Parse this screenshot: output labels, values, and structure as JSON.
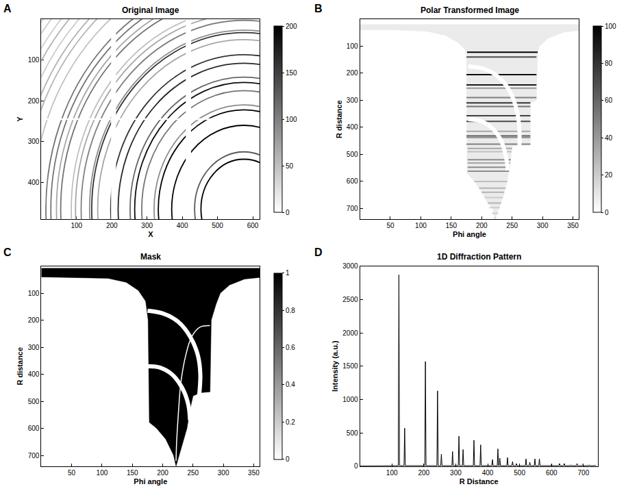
{
  "chart_data": [
    {
      "type": "image",
      "panel": "A",
      "title": "Original Image",
      "xlabel": "X",
      "ylabel": "Y",
      "xlim": [
        0,
        620
      ],
      "ylim": [
        490,
        0
      ],
      "xticks": [
        100,
        200,
        300,
        400,
        500,
        600
      ],
      "yticks": [
        100,
        200,
        300,
        400
      ],
      "colorbar": {
        "range": [
          0,
          200
        ],
        "ticks": [
          0,
          50,
          100,
          150,
          200
        ]
      },
      "center": [
        575,
        465
      ],
      "rings": [
        {
          "r": 122,
          "intensity": 200
        },
        {
          "r": 140,
          "intensity": 130
        },
        {
          "r": 205,
          "intensity": 200
        },
        {
          "r": 243,
          "intensity": 200
        },
        {
          "r": 255,
          "intensity": 90
        },
        {
          "r": 290,
          "intensity": 110
        },
        {
          "r": 310,
          "intensity": 190
        },
        {
          "r": 323,
          "intensity": 120
        },
        {
          "r": 357,
          "intensity": 170
        },
        {
          "r": 378,
          "intensity": 160
        },
        {
          "r": 415,
          "intensity": 70
        },
        {
          "r": 432,
          "intensity": 160
        },
        {
          "r": 438,
          "intensity": 90
        },
        {
          "r": 462,
          "intensity": 100
        },
        {
          "r": 478,
          "intensity": 70
        },
        {
          "r": 490,
          "intensity": 50
        },
        {
          "r": 520,
          "intensity": 110
        },
        {
          "r": 532,
          "intensity": 70
        },
        {
          "r": 548,
          "intensity": 110
        },
        {
          "r": 562,
          "intensity": 110
        },
        {
          "r": 600,
          "intensity": 50
        },
        {
          "r": 625,
          "intensity": 60
        },
        {
          "r": 640,
          "intensity": 60
        },
        {
          "r": 660,
          "intensity": 40
        },
        {
          "r": 680,
          "intensity": 60
        },
        {
          "r": 697,
          "intensity": 40
        },
        {
          "r": 718,
          "intensity": 40
        },
        {
          "r": 735,
          "intensity": 30
        }
      ],
      "gaps": [
        {
          "x": [
            198,
            212
          ],
          "y": [
            0,
            490
          ],
          "value": 0
        },
        {
          "x": [
            410,
            425
          ],
          "y": [
            0,
            490
          ],
          "value": 0
        },
        {
          "x": [
            0,
            620
          ],
          "y": [
            243,
            247
          ],
          "value": 0
        }
      ]
    },
    {
      "type": "image",
      "panel": "B",
      "title": "Polar Transformed Image",
      "xlabel": "Phi angle",
      "ylabel": "R distance",
      "xlim": [
        0,
        360
      ],
      "ylim": [
        740,
        0
      ],
      "xticks": [
        50,
        100,
        150,
        200,
        250,
        300,
        350
      ],
      "yticks": [
        100,
        200,
        300,
        400,
        500,
        600,
        700
      ],
      "colorbar": {
        "range": [
          0,
          100
        ],
        "ticks": [
          0,
          20,
          40,
          60,
          80,
          100
        ]
      },
      "region": {
        "value": 8,
        "phi": [
          0,
          360,
          360,
          335,
          310,
          295,
          292,
          290,
          280,
          280,
          250,
          248,
          245,
          242,
          236,
          228,
          222,
          218,
          210,
          200,
          188,
          178,
          176,
          175,
          172,
          160,
          140,
          110,
          60,
          0
        ],
        "r": [
          20,
          20,
          42,
          48,
          70,
          100,
          122,
          300,
          310,
          465,
          470,
          520,
          560,
          600,
          650,
          700,
          740,
          700,
          680,
          640,
          600,
          575,
          570,
          130,
          110,
          85,
          60,
          45,
          40,
          40
        ]
      },
      "lines": [
        {
          "r": 122,
          "phi": [
            176,
            292
          ],
          "intensity": 100
        },
        {
          "r": 140,
          "phi": [
            175,
            290
          ],
          "intensity": 70
        },
        {
          "r": 205,
          "phi": [
            175,
            290
          ],
          "intensity": 95
        },
        {
          "r": 243,
          "phi": [
            175,
            290
          ],
          "intensity": 90
        },
        {
          "r": 255,
          "phi": [
            175,
            290
          ],
          "intensity": 40
        },
        {
          "r": 290,
          "phi": [
            175,
            290
          ],
          "intensity": 50
        },
        {
          "r": 310,
          "phi": [
            175,
            280
          ],
          "intensity": 80
        },
        {
          "r": 323,
          "phi": [
            175,
            280
          ],
          "intensity": 55
        },
        {
          "r": 357,
          "phi": [
            175,
            280
          ],
          "intensity": 75
        },
        {
          "r": 378,
          "phi": [
            175,
            280
          ],
          "intensity": 70
        },
        {
          "r": 415,
          "phi": [
            175,
            280
          ],
          "intensity": 35
        },
        {
          "r": 432,
          "phi": [
            175,
            280
          ],
          "intensity": 65
        },
        {
          "r": 438,
          "phi": [
            175,
            280
          ],
          "intensity": 40
        },
        {
          "r": 462,
          "phi": [
            175,
            280
          ],
          "intensity": 50
        },
        {
          "r": 478,
          "phi": [
            177,
            250
          ],
          "intensity": 35
        },
        {
          "r": 490,
          "phi": [
            177,
            249
          ],
          "intensity": 25
        },
        {
          "r": 520,
          "phi": [
            177,
            248
          ],
          "intensity": 45
        },
        {
          "r": 532,
          "phi": [
            177,
            247
          ],
          "intensity": 35
        },
        {
          "r": 548,
          "phi": [
            177,
            246
          ],
          "intensity": 45
        },
        {
          "r": 562,
          "phi": [
            177,
            245
          ],
          "intensity": 45
        },
        {
          "r": 600,
          "phi": [
            188,
            242
          ],
          "intensity": 25
        },
        {
          "r": 625,
          "phi": [
            196,
            239
          ],
          "intensity": 30
        },
        {
          "r": 640,
          "phi": [
            200,
            237
          ],
          "intensity": 30
        },
        {
          "r": 660,
          "phi": [
            205,
            235
          ],
          "intensity": 20
        },
        {
          "r": 680,
          "phi": [
            210,
            232
          ],
          "intensity": 30
        },
        {
          "r": 697,
          "phi": [
            213,
            230
          ],
          "intensity": 20
        },
        {
          "r": 718,
          "phi": [
            217,
            227
          ],
          "intensity": 20
        },
        {
          "r": 735,
          "phi": [
            220,
            224
          ],
          "intensity": 15
        }
      ],
      "arcs": [
        {
          "value": 0,
          "phi": [
            178,
            205,
            228,
            247,
            258,
            262,
            262
          ],
          "r": [
            175,
            185,
            215,
            270,
            340,
            410,
            470
          ]
        },
        {
          "value": 0,
          "phi": [
            178,
            200,
            218,
            232,
            240,
            243
          ],
          "r": [
            370,
            378,
            405,
            450,
            510,
            560
          ]
        }
      ]
    },
    {
      "type": "image",
      "panel": "C",
      "title": "Mask",
      "xlabel": "Phi angle",
      "ylabel": "R distance",
      "xlim": [
        0,
        360
      ],
      "ylim": [
        740,
        0
      ],
      "xticks": [
        50,
        100,
        150,
        200,
        250,
        300,
        350
      ],
      "yticks": [
        100,
        200,
        300,
        400,
        500,
        600,
        700
      ],
      "colorbar": {
        "range": [
          0,
          1
        ],
        "ticks": [
          0,
          0.2,
          0.4,
          0.6,
          0.8,
          1
        ]
      },
      "region": {
        "value": 1,
        "phi": [
          0,
          360,
          360,
          335,
          310,
          295,
          288,
          280,
          278,
          262,
          250,
          245,
          240,
          230,
          222,
          218,
          205,
          190,
          178,
          176,
          172,
          160,
          140,
          110,
          60,
          0
        ],
        "r": [
          8,
          8,
          42,
          48,
          70,
          100,
          140,
          200,
          465,
          468,
          480,
          530,
          600,
          680,
          740,
          700,
          640,
          600,
          578,
          200,
          130,
          90,
          60,
          45,
          42,
          40
        ]
      },
      "arcs": [
        {
          "value": 0,
          "phi": [
            175,
            200,
            225,
            245,
            258,
            262,
            260
          ],
          "r": [
            165,
            175,
            205,
            260,
            330,
            400,
            480
          ]
        },
        {
          "value": 0,
          "phi": [
            175,
            195,
            215,
            232,
            242,
            245
          ],
          "r": [
            370,
            375,
            400,
            450,
            510,
            570
          ]
        },
        {
          "value": 0,
          "phi": [
            278,
            262,
            248,
            238,
            230,
            226,
            223,
            222
          ],
          "r": [
            220,
            225,
            260,
            330,
            430,
            540,
            650,
            720
          ]
        }
      ]
    },
    {
      "type": "line",
      "panel": "D",
      "title": "1D Diffraction Pattern",
      "xlabel": "R Distance",
      "ylabel": "Intensity (a.u.)",
      "xlim": [
        0,
        745
      ],
      "ylim": [
        0,
        3000
      ],
      "xticks": [
        100,
        200,
        300,
        400,
        500,
        600,
        700
      ],
      "yticks": [
        0,
        500,
        1000,
        1500,
        2000,
        2500,
        3000
      ],
      "color": "#000000",
      "x": [
        1,
        120,
        122,
        124,
        138,
        140,
        142,
        203,
        205,
        207,
        241,
        243,
        245,
        253,
        255,
        257,
        288,
        290,
        292,
        308,
        310,
        312,
        321,
        323,
        325,
        355,
        357,
        359,
        376,
        378,
        380,
        413,
        415,
        417,
        430,
        432,
        434,
        436,
        438,
        440,
        460,
        462,
        464,
        476,
        478,
        480,
        488,
        490,
        492,
        518,
        520,
        522,
        530,
        532,
        534,
        546,
        548,
        550,
        560,
        562,
        564,
        598,
        600,
        602,
        623,
        625,
        627,
        638,
        640,
        642,
        658,
        660,
        662,
        678,
        680,
        682,
        695,
        697,
        699,
        716,
        718,
        720,
        733,
        735,
        737,
        740
      ],
      "values": [
        5,
        8,
        2870,
        8,
        8,
        570,
        8,
        8,
        1570,
        8,
        8,
        1130,
        8,
        8,
        180,
        8,
        8,
        220,
        8,
        8,
        450,
        8,
        8,
        250,
        8,
        8,
        390,
        8,
        8,
        320,
        8,
        8,
        100,
        8,
        8,
        260,
        8,
        8,
        120,
        8,
        8,
        130,
        8,
        8,
        70,
        8,
        8,
        40,
        8,
        8,
        110,
        8,
        8,
        60,
        8,
        8,
        110,
        8,
        8,
        110,
        8,
        8,
        30,
        8,
        8,
        40,
        8,
        8,
        40,
        8,
        8,
        20,
        8,
        8,
        40,
        8,
        8,
        20,
        8,
        8,
        20,
        8,
        8,
        15,
        8,
        8
      ]
    }
  ]
}
